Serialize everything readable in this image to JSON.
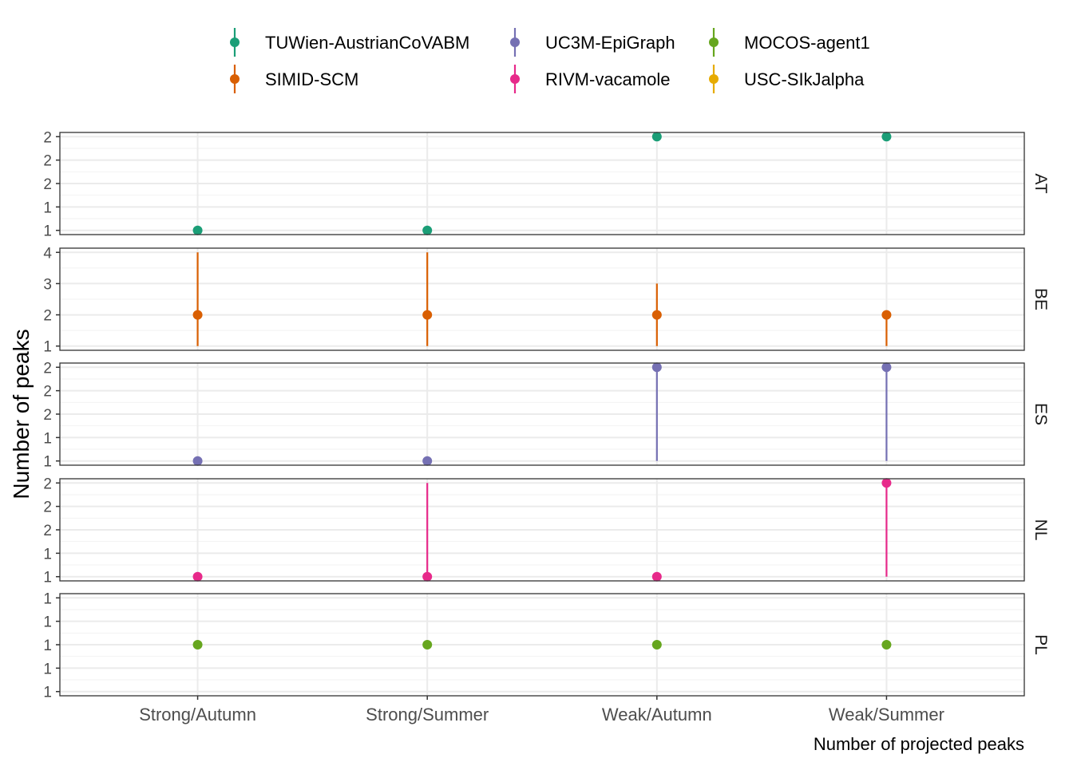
{
  "chart_data": {
    "type": "scatter",
    "xlabel": "Number of projected peaks",
    "ylabel": "Number of peaks",
    "categories": [
      "Strong/Autumn",
      "Strong/Summer",
      "Weak/Autumn",
      "Weak/Summer"
    ],
    "legend_position": "top",
    "grid": true,
    "series": [
      {
        "name": "TUWien-AustrianCoVABM",
        "color": "#1b9e77"
      },
      {
        "name": "SIMID-SCM",
        "color": "#d95f02"
      },
      {
        "name": "UC3M-EpiGraph",
        "color": "#7570b3"
      },
      {
        "name": "RIVM-vacamole",
        "color": "#e7298a"
      },
      {
        "name": "MOCOS-agent1",
        "color": "#66a61e"
      },
      {
        "name": "USC-SIkJalpha",
        "color": "#e6ab02"
      }
    ],
    "facets": [
      {
        "label": "AT",
        "ylim": [
          1,
          2
        ],
        "yticks": [
          1,
          1.25,
          1.5,
          1.75,
          2
        ],
        "ytick_labels": [
          "1",
          "1",
          "2",
          "2",
          "2"
        ],
        "points": [
          {
            "series": "TUWien-AustrianCoVABM",
            "category": "Strong/Autumn",
            "y": 1,
            "ymin": 1,
            "ymax": 1
          },
          {
            "series": "TUWien-AustrianCoVABM",
            "category": "Strong/Summer",
            "y": 1,
            "ymin": 1,
            "ymax": 1
          },
          {
            "series": "TUWien-AustrianCoVABM",
            "category": "Weak/Autumn",
            "y": 2,
            "ymin": 2,
            "ymax": 2
          },
          {
            "series": "TUWien-AustrianCoVABM",
            "category": "Weak/Summer",
            "y": 2,
            "ymin": 2,
            "ymax": 2
          }
        ]
      },
      {
        "label": "BE",
        "ylim": [
          1,
          4
        ],
        "yticks": [
          1,
          2,
          3,
          4
        ],
        "ytick_labels": [
          "1",
          "2",
          "3",
          "4"
        ],
        "points": [
          {
            "series": "SIMID-SCM",
            "category": "Strong/Autumn",
            "y": 2,
            "ymin": 1,
            "ymax": 4
          },
          {
            "series": "SIMID-SCM",
            "category": "Strong/Summer",
            "y": 2,
            "ymin": 1,
            "ymax": 4
          },
          {
            "series": "SIMID-SCM",
            "category": "Weak/Autumn",
            "y": 2,
            "ymin": 1,
            "ymax": 3
          },
          {
            "series": "SIMID-SCM",
            "category": "Weak/Summer",
            "y": 2,
            "ymin": 1,
            "ymax": 2
          }
        ]
      },
      {
        "label": "ES",
        "ylim": [
          1,
          2
        ],
        "yticks": [
          1,
          1.25,
          1.5,
          1.75,
          2
        ],
        "ytick_labels": [
          "1",
          "1",
          "2",
          "2",
          "2"
        ],
        "points": [
          {
            "series": "UC3M-EpiGraph",
            "category": "Strong/Autumn",
            "y": 1,
            "ymin": 1,
            "ymax": 1
          },
          {
            "series": "UC3M-EpiGraph",
            "category": "Strong/Summer",
            "y": 1,
            "ymin": 1,
            "ymax": 1
          },
          {
            "series": "UC3M-EpiGraph",
            "category": "Weak/Autumn",
            "y": 2,
            "ymin": 1,
            "ymax": 2
          },
          {
            "series": "UC3M-EpiGraph",
            "category": "Weak/Summer",
            "y": 2,
            "ymin": 1,
            "ymax": 2
          }
        ]
      },
      {
        "label": "NL",
        "ylim": [
          1,
          2
        ],
        "yticks": [
          1,
          1.25,
          1.5,
          1.75,
          2
        ],
        "ytick_labels": [
          "1",
          "1",
          "2",
          "2",
          "2"
        ],
        "points": [
          {
            "series": "RIVM-vacamole",
            "category": "Strong/Autumn",
            "y": 1,
            "ymin": 1,
            "ymax": 1
          },
          {
            "series": "RIVM-vacamole",
            "category": "Strong/Summer",
            "y": 1,
            "ymin": 1,
            "ymax": 2
          },
          {
            "series": "RIVM-vacamole",
            "category": "Weak/Autumn",
            "y": 1,
            "ymin": 1,
            "ymax": 1
          },
          {
            "series": "RIVM-vacamole",
            "category": "Weak/Summer",
            "y": 2,
            "ymin": 1,
            "ymax": 2
          }
        ]
      },
      {
        "label": "PL",
        "ylim": [
          0.95,
          1.05
        ],
        "yticks": [
          0.95,
          0.975,
          1,
          1.025,
          1.05
        ],
        "ytick_labels": [
          "1",
          "1",
          "1",
          "1",
          "1"
        ],
        "points": [
          {
            "series": "MOCOS-agent1",
            "category": "Strong/Autumn",
            "y": 1,
            "ymin": 1,
            "ymax": 1
          },
          {
            "series": "MOCOS-agent1",
            "category": "Strong/Summer",
            "y": 1,
            "ymin": 1,
            "ymax": 1
          },
          {
            "series": "MOCOS-agent1",
            "category": "Weak/Autumn",
            "y": 1,
            "ymin": 1,
            "ymax": 1
          },
          {
            "series": "MOCOS-agent1",
            "category": "Weak/Summer",
            "y": 1,
            "ymin": 1,
            "ymax": 1
          }
        ]
      }
    ]
  }
}
